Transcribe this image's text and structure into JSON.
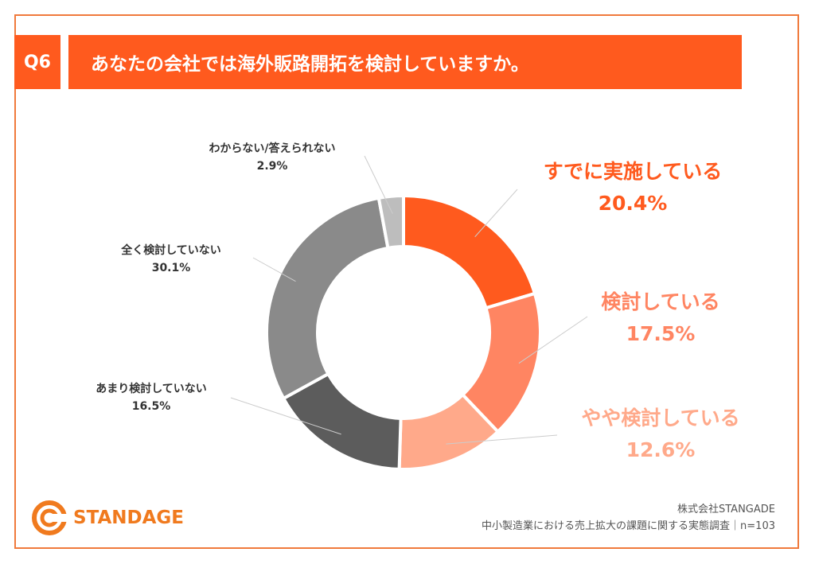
{
  "header": {
    "question_no": "Q6",
    "question": "あなたの会社では海外販路開拓を検討していますか。"
  },
  "chart_data": {
    "type": "pie",
    "style": "donut",
    "slices": [
      {
        "label": "すでに実施している",
        "value": 20.4,
        "display": "20.4%",
        "color": "#FF5A1E",
        "text_color": "#FF5A1E"
      },
      {
        "label": "検討している",
        "value": 17.5,
        "display": "17.5%",
        "color": "#FF8562",
        "text_color": "#FF8562"
      },
      {
        "label": "やや検討している",
        "value": 12.6,
        "display": "12.6%",
        "color": "#FFA98A",
        "text_color": "#FFA98A"
      },
      {
        "label": "あまり検討していない",
        "value": 16.5,
        "display": "16.5%",
        "color": "#5C5C5C",
        "text_color": "#333333"
      },
      {
        "label": "全く検討していない",
        "value": 30.1,
        "display": "30.1%",
        "color": "#8A8A8A",
        "text_color": "#333333"
      },
      {
        "label": "わからない/答えられない",
        "value": 2.9,
        "display": "2.9%",
        "color": "#BDBDBD",
        "text_color": "#333333"
      }
    ]
  },
  "logo": {
    "name": "STANDAGE"
  },
  "source": {
    "company": "株式会社STANGADE",
    "survey": "中小製造業における売上拡大の課題に関する実態調査｜n=103"
  }
}
